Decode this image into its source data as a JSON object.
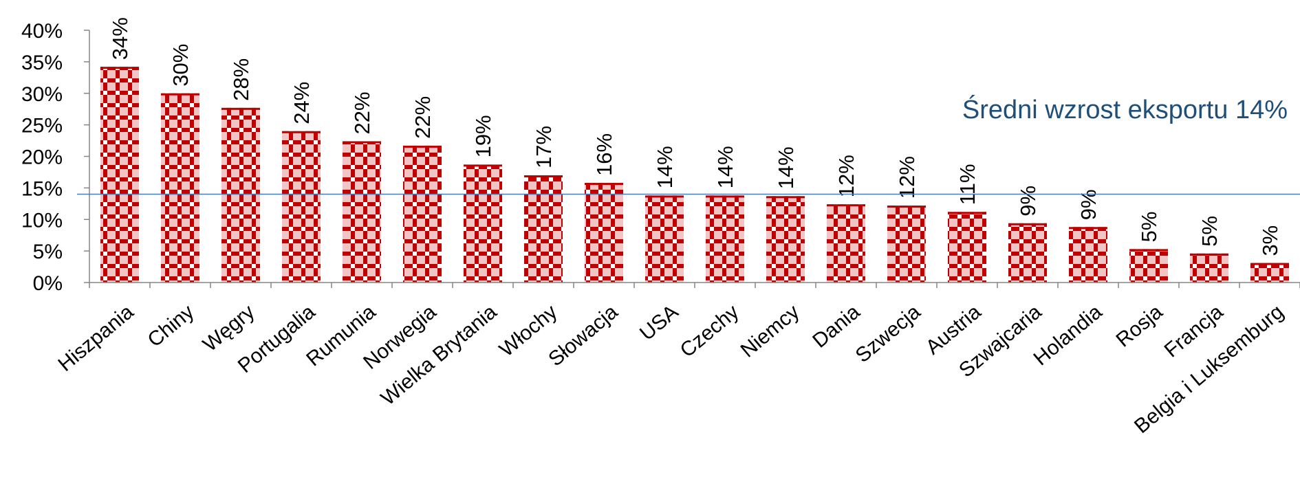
{
  "chart_data": {
    "type": "bar",
    "categories": [
      "Hiszpania",
      "Chiny",
      "Węgry",
      "Portugalia",
      "Rumunia",
      "Norwegia",
      "Wielka Brytania",
      "Włochy",
      "Słowacja",
      "USA",
      "Czechy",
      "Niemcy",
      "Dania",
      "Szwecja",
      "Austria",
      "Szwajcaria",
      "Holandia",
      "Rosja",
      "Francja",
      "Belgia i Luksemburg"
    ],
    "values": [
      34.2,
      30.0,
      27.7,
      24.0,
      22.4,
      21.7,
      18.7,
      17.0,
      15.8,
      13.8,
      13.8,
      13.7,
      12.4,
      12.2,
      11.2,
      9.4,
      8.8,
      5.3,
      4.6,
      3.1
    ],
    "value_labels": [
      "34%",
      "30%",
      "28%",
      "24%",
      "22%",
      "22%",
      "19%",
      "17%",
      "16%",
      "14%",
      "14%",
      "14%",
      "12%",
      "12%",
      "11%",
      "9%",
      "9%",
      "5%",
      "5%",
      "3%"
    ],
    "y_ticks": [
      "0%",
      "5%",
      "10%",
      "15%",
      "20%",
      "25%",
      "30%",
      "35%",
      "40%"
    ],
    "ylim": [
      0,
      40
    ],
    "average": {
      "value": 14,
      "label": "Średni wzrost eksportu 14%"
    },
    "title": "",
    "xlabel": "",
    "ylabel": "",
    "grid": false,
    "colors": {
      "bar": "#c00000",
      "bar_light": "#ffffff",
      "average_line": "#4a7ebb",
      "average_text": "#1f4e79",
      "axis": "#868686",
      "text": "#000000"
    }
  }
}
